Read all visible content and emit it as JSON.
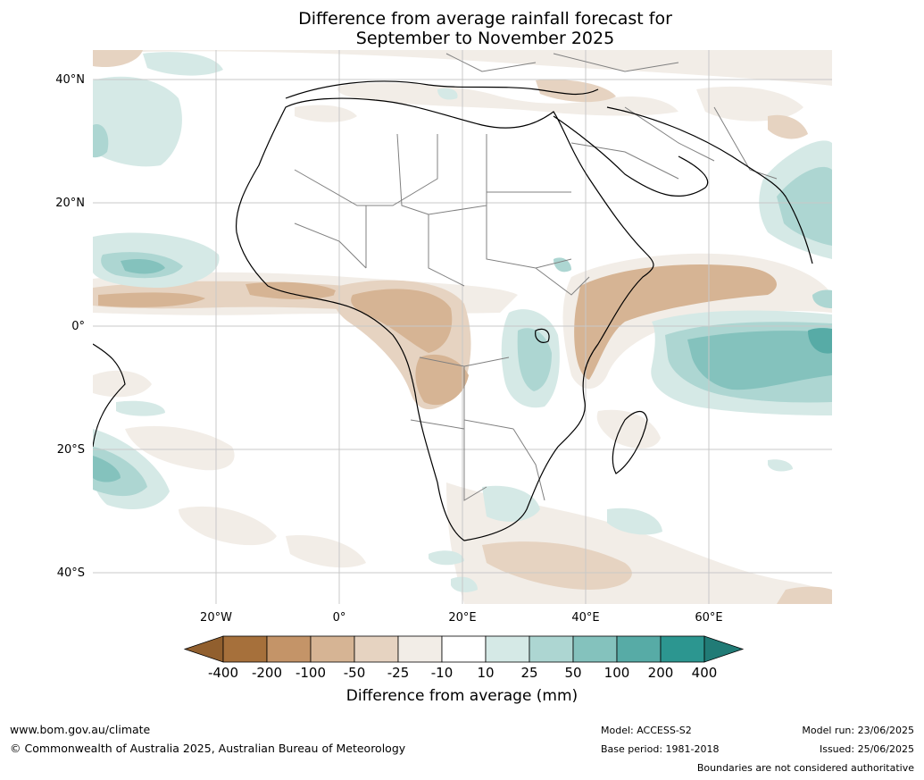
{
  "title_line1": "Difference from average rainfall forecast for",
  "title_line2": "September to November 2025",
  "lat_labels": [
    "40°N",
    "20°N",
    "0°",
    "20°S",
    "40°S"
  ],
  "lon_labels": [
    "20°W",
    "0°",
    "20°E",
    "40°E",
    "60°E"
  ],
  "colorbar": {
    "ticks": [
      "-400",
      "-200",
      "-100",
      "-50",
      "-25",
      "-10",
      "10",
      "25",
      "50",
      "100",
      "200",
      "400"
    ],
    "colors": [
      "#a6703b",
      "#c49468",
      "#d6b494",
      "#e6d3c1",
      "#f2ede7",
      "#ffffff",
      "#d5e9e6",
      "#add6d2",
      "#84c2bd",
      "#57aba6",
      "#2c9690"
    ],
    "over_color": "#217b76",
    "under_color": "#915f2e",
    "label": "Difference from average (mm)"
  },
  "footer": {
    "url": "www.bom.gov.au/climate",
    "copyright": "© Commonwealth of Australia 2025, Australian Bureau of Meteorology",
    "model": "Model: ACCESS-S2",
    "base_period": "Base period: 1981-2018",
    "model_run": "Model run: 23/06/2025",
    "issued": "Issued: 25/06/2025",
    "disclaimer": "Boundaries are not considered authoritative"
  }
}
